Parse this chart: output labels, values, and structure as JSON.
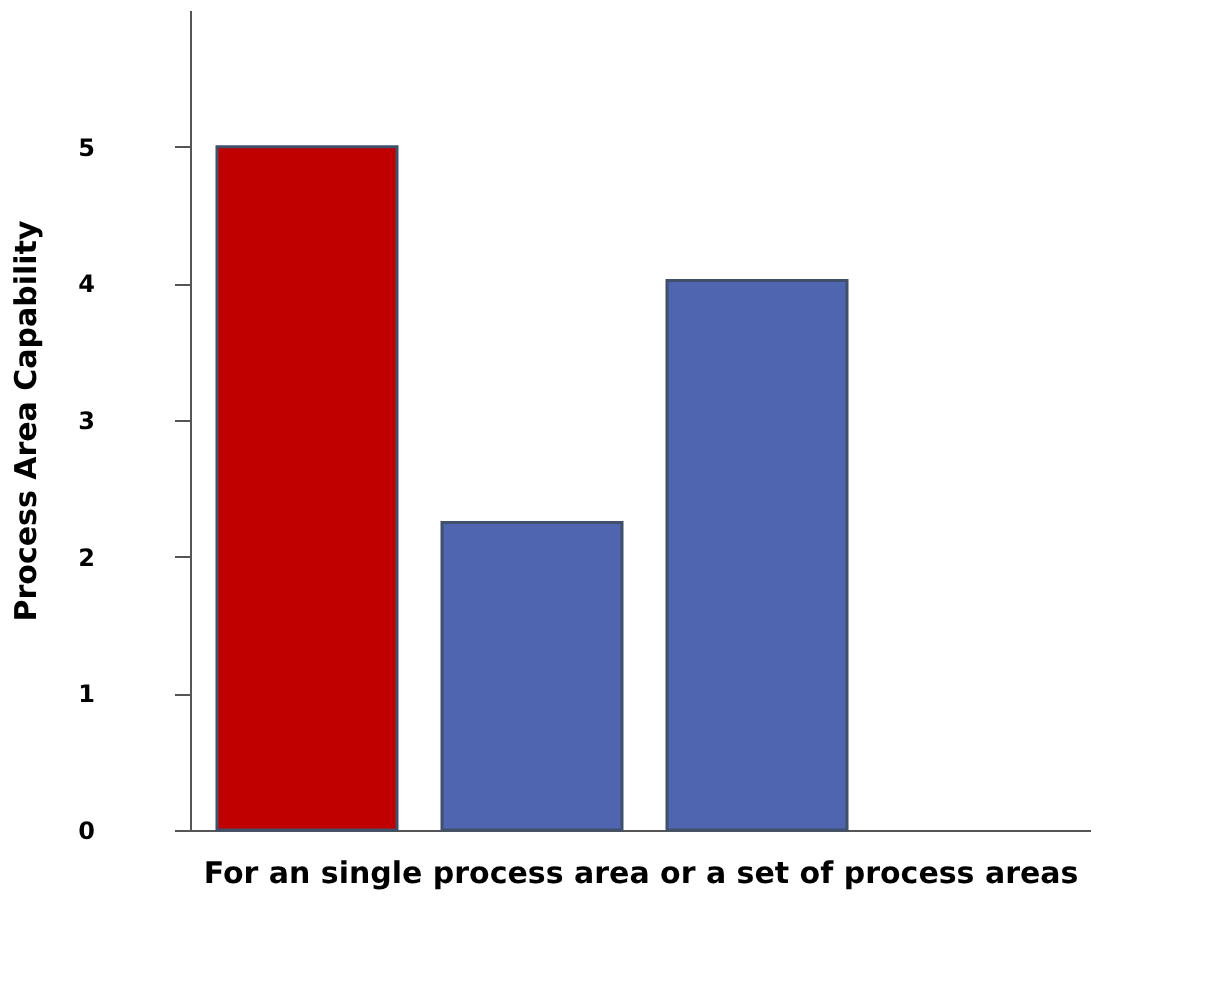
{
  "chart_data": {
    "type": "bar",
    "categories": [
      null,
      null,
      null
    ],
    "values": [
      5,
      2.25,
      4.02
    ],
    "colors": [
      "#c00000",
      "#4f65b0",
      "#4f65b0"
    ],
    "ylim": [
      0,
      6
    ],
    "yticks": [
      0,
      1,
      2,
      3,
      4,
      5
    ],
    "xlabel": "For an single process area or a set of process areas",
    "ylabel": "Process Area Capability",
    "tick_labels": "y",
    "grid": false
  }
}
